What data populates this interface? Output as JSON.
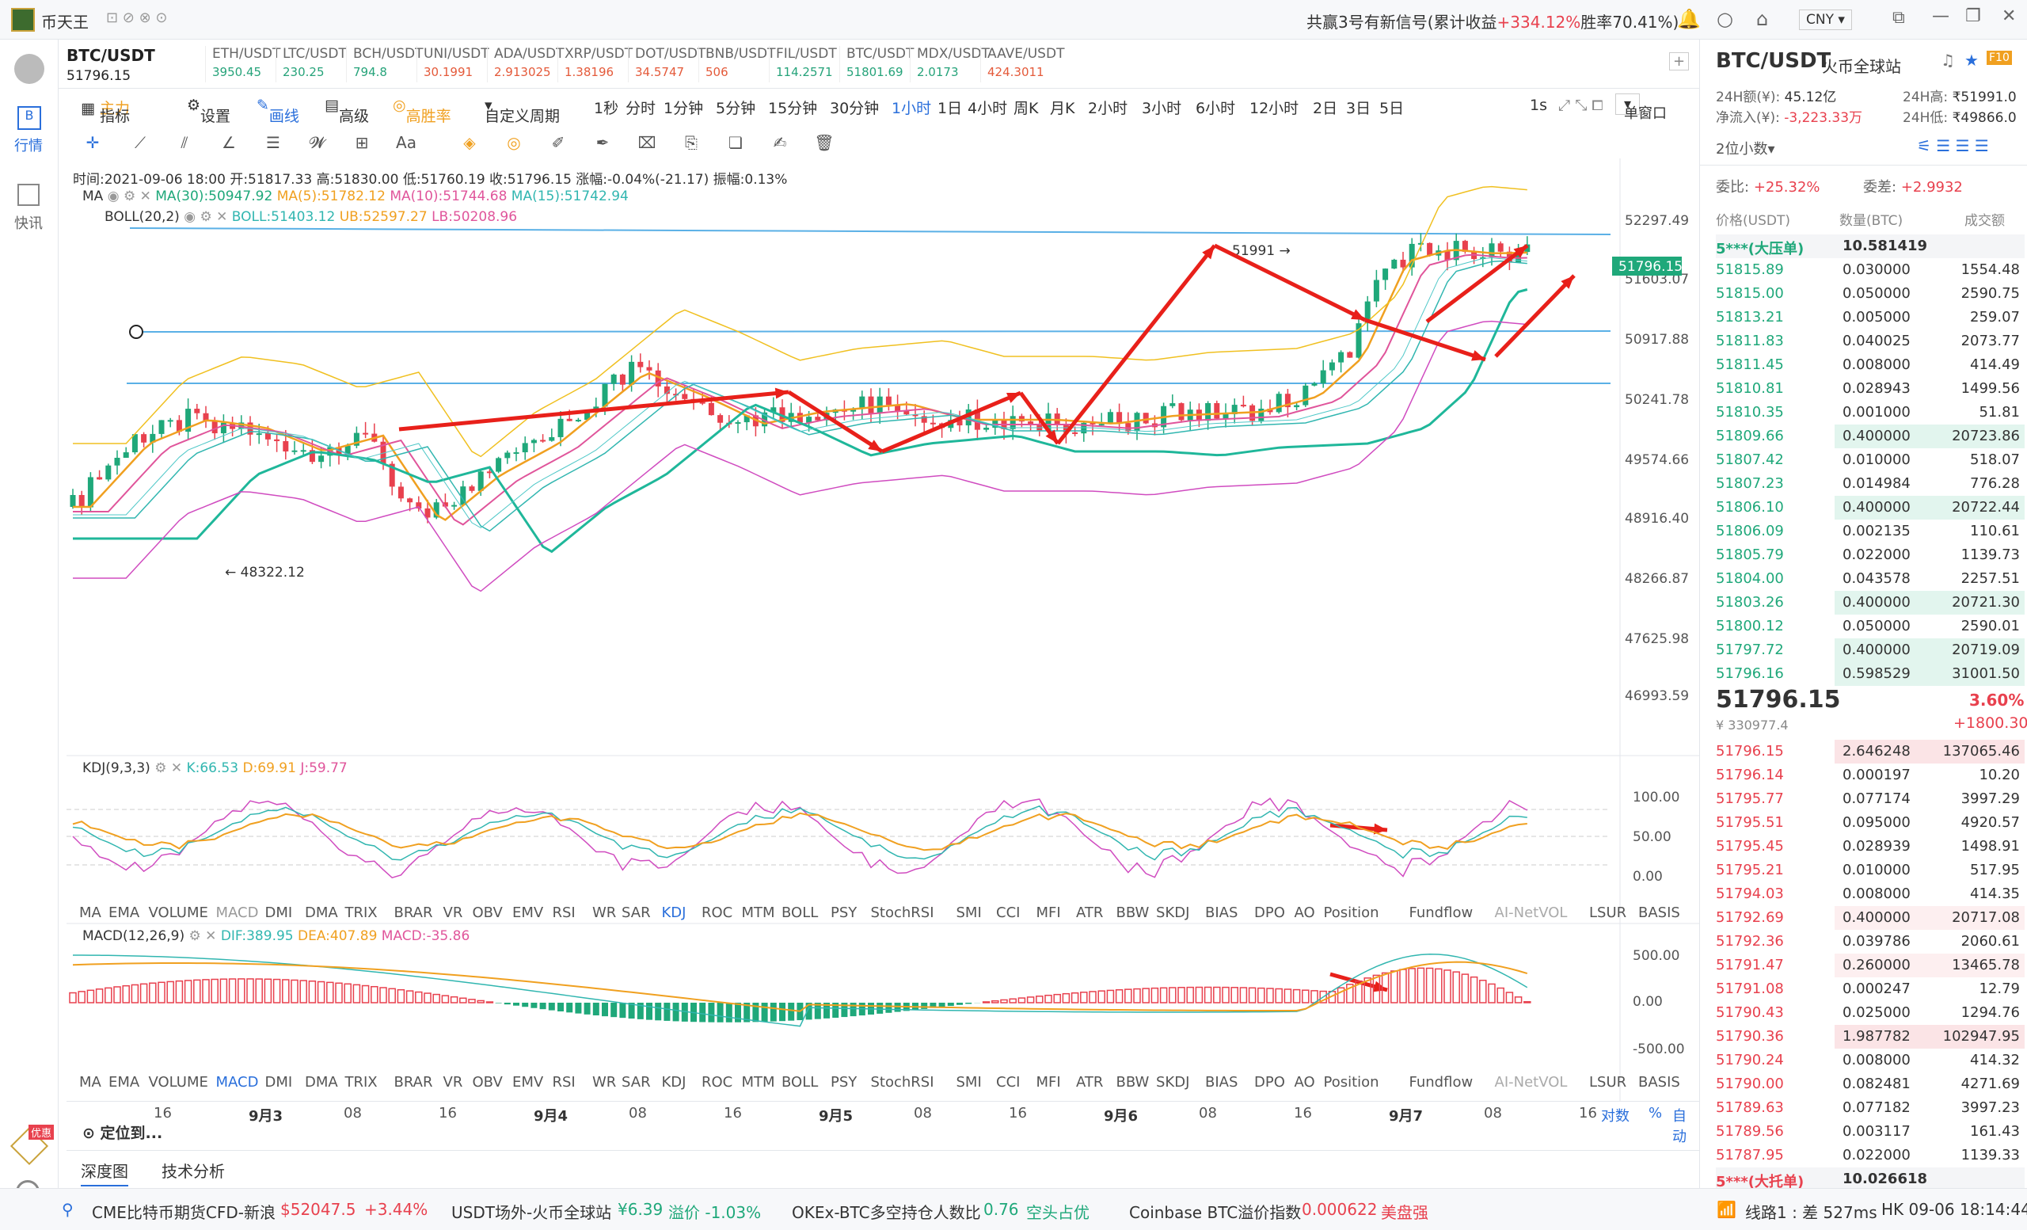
{
  "window": {
    "app_name": "币天王",
    "signal_text": "共赢3号有新信号(累计收益",
    "signal_gain": "+334.12%",
    "signal_win": "胜率70.41%)",
    "currency": "CNY"
  },
  "sidebar": {
    "items": [
      {
        "label": ""
      },
      {
        "label": "行情"
      },
      {
        "label": "快讯"
      }
    ],
    "promo": "优惠"
  },
  "tickers": [
    {
      "name": "BTC/USDT",
      "price": "51796.15",
      "main": true
    },
    {
      "name": "ETH/USDT",
      "price": "3950.45",
      "dir": "up"
    },
    {
      "name": "LTC/USDT",
      "price": "230.25",
      "dir": "up"
    },
    {
      "name": "BCH/USDT",
      "price": "794.8",
      "dir": "up"
    },
    {
      "name": "UNI/USDT",
      "price": "30.1991",
      "dir": "down"
    },
    {
      "name": "ADA/USDT",
      "price": "2.913025",
      "dir": "down"
    },
    {
      "name": "XRP/USDT",
      "price": "1.38196",
      "dir": "down"
    },
    {
      "name": "DOT/USDT",
      "price": "34.5747",
      "dir": "down"
    },
    {
      "name": "BNB/USDT",
      "price": "506",
      "dir": "down"
    },
    {
      "name": "FIL/USDT",
      "price": "114.2571",
      "dir": "up"
    },
    {
      "name": "BTC/USDT",
      "price": "51801.69",
      "dir": "up"
    },
    {
      "name": "MDX/USDT",
      "price": "2.0173",
      "dir": "up"
    },
    {
      "name": "AAVE/USDT",
      "price": "424.3011",
      "dir": "down"
    }
  ],
  "toolbar": {
    "indicator": "指标",
    "main": "主力",
    "settings": "设置",
    "draw": "画线",
    "advanced": "高级",
    "winrate": "高胜率",
    "custom": "自定义周期",
    "periods": [
      "1秒",
      "分时",
      "1分钟",
      "5分钟",
      "15分钟",
      "30分钟",
      "1小时",
      "1日",
      "4小时",
      "周K",
      "月K",
      "2小时",
      "3小时",
      "6小时",
      "12小时",
      "2日",
      "3日",
      "5日"
    ],
    "active_period": "1小时",
    "interval": "1s",
    "window_mode": "单窗口"
  },
  "info": {
    "ohlc": "时间:2021-09-06 18:00  开:51817.33  高:51830.00  低:51760.19  收:51796.15  涨幅:-0.04%(-21.17)  振幅:0.13%",
    "ma_label": "MA",
    "ma30": "MA(30):50947.92",
    "ma5": "MA(5):51782.12",
    "ma10": "MA(10):51744.68",
    "ma15": "MA(15):51742.94",
    "boll_label": "BOLL(20,2)",
    "boll": "BOLL:51403.12",
    "ub": "UB:52597.27",
    "lb": "LB:50208.96",
    "kdj_label": "KDJ(9,3,3)",
    "k": "K:66.53",
    "d": "D:69.91",
    "j": "J:59.77",
    "macd_label": "MACD(12,26,9)",
    "dif": "DIF:389.95",
    "dea": "DEA:407.89",
    "macd": "MACD:-35.86"
  },
  "price_axis": [
    "52297.49",
    "51603.07",
    "50917.88",
    "50241.78",
    "49574.66",
    "48916.40",
    "48266.87",
    "47625.98",
    "46993.59"
  ],
  "current_price_tag": "51796.15",
  "annot_high": "51991",
  "annot_low": "48322.12",
  "kdj_axis": [
    "100.00",
    "50.00",
    "0.00"
  ],
  "macd_axis": [
    "500.00",
    "0.00",
    "-500.00"
  ],
  "indicator_tabs": [
    "MA",
    "EMA",
    "VOLUME",
    "MACD",
    "DMI",
    "DMA",
    "TRIX",
    "BRAR",
    "VR",
    "OBV",
    "EMV",
    "RSI",
    "WR",
    "SAR",
    "KDJ",
    "ROC",
    "MTM",
    "BOLL",
    "PSY",
    "StochRSI",
    "SMI",
    "CCI",
    "MFI",
    "ATR",
    "BBW",
    "SKDJ",
    "BIAS",
    "DPO",
    "AO",
    "Position",
    "Fundflow",
    "AI-NetVOL",
    "LSUR",
    "BASIS"
  ],
  "time_axis": [
    "16",
    "9月3",
    "08",
    "16",
    "9月4",
    "08",
    "16",
    "9月5",
    "08",
    "16",
    "9月6",
    "08",
    "16",
    "9月7",
    "08",
    "16"
  ],
  "axis_opts": [
    "对数",
    "%",
    "自动"
  ],
  "locate": "定位到...",
  "bottom_tabs": [
    "深度图",
    "技术分析"
  ],
  "right": {
    "pair": "BTC/USDT",
    "exchange": "火币全球站",
    "vol_label": "24H额(¥):",
    "vol": "45.12亿",
    "high_label": "24H高:",
    "high": "₹51991.0",
    "inflow_label": "净流入(¥):",
    "inflow": "-3,223.33万",
    "low_label": "24H低:",
    "low": "₹49866.0",
    "decimals": "2位小数",
    "wb_label": "委比:",
    "wb": "+25.32%",
    "wc_label": "委差:",
    "wc": "+2.9932",
    "cols": [
      "价格(USDT)",
      "数量(BTC)",
      "成交额"
    ],
    "big_sell": {
      "price": "5***(大压单)",
      "qty": "10.581419"
    },
    "asks": [
      [
        "51815.89",
        "0.030000",
        "1554.48"
      ],
      [
        "51815.00",
        "0.050000",
        "2590.75"
      ],
      [
        "51813.21",
        "0.005000",
        "259.07"
      ],
      [
        "51811.83",
        "0.040025",
        "2073.77"
      ],
      [
        "51811.45",
        "0.008000",
        "414.49"
      ],
      [
        "51810.81",
        "0.028943",
        "1499.56"
      ],
      [
        "51810.35",
        "0.001000",
        "51.81"
      ],
      [
        "51809.66",
        "0.400000",
        "20723.86"
      ],
      [
        "51807.42",
        "0.010000",
        "518.07"
      ],
      [
        "51807.23",
        "0.014984",
        "776.28"
      ],
      [
        "51806.10",
        "0.400000",
        "20722.44"
      ],
      [
        "51806.09",
        "0.002135",
        "110.61"
      ],
      [
        "51805.79",
        "0.022000",
        "1139.73"
      ],
      [
        "51804.00",
        "0.043578",
        "2257.51"
      ],
      [
        "51803.26",
        "0.400000",
        "20721.30"
      ],
      [
        "51800.12",
        "0.050000",
        "2590.01"
      ],
      [
        "51797.72",
        "0.400000",
        "20719.09"
      ],
      [
        "51796.16",
        "0.598529",
        "31001.50"
      ]
    ],
    "last": "51796.15",
    "last_cny": "¥ 330977.4",
    "chg_pct": "3.60%",
    "chg": "+1800.30",
    "bids": [
      [
        "51796.15",
        "2.646248",
        "137065.46"
      ],
      [
        "51796.14",
        "0.000197",
        "10.20"
      ],
      [
        "51795.77",
        "0.077174",
        "3997.29"
      ],
      [
        "51795.51",
        "0.095000",
        "4920.57"
      ],
      [
        "51795.45",
        "0.028939",
        "1498.91"
      ],
      [
        "51795.21",
        "0.010000",
        "517.95"
      ],
      [
        "51794.03",
        "0.008000",
        "414.35"
      ],
      [
        "51792.69",
        "0.400000",
        "20717.08"
      ],
      [
        "51792.36",
        "0.039786",
        "2060.61"
      ],
      [
        "51791.47",
        "0.260000",
        "13465.78"
      ],
      [
        "51791.08",
        "0.000247",
        "12.79"
      ],
      [
        "51790.43",
        "0.025000",
        "1294.76"
      ],
      [
        "51790.36",
        "1.987782",
        "102947.95"
      ],
      [
        "51790.24",
        "0.008000",
        "414.32"
      ],
      [
        "51790.00",
        "0.082481",
        "4271.69"
      ],
      [
        "51789.63",
        "0.077182",
        "3997.23"
      ],
      [
        "51789.56",
        "0.003117",
        "161.43"
      ],
      [
        "51787.95",
        "0.022000",
        "1139.33"
      ]
    ],
    "big_buy": {
      "price": "5***(大托单)",
      "qty": "10.026618"
    }
  },
  "bottombar": {
    "cme": "CME比特币期货CFD-新浪",
    "cme_price": "$52047.5",
    "cme_chg": "+3.44%",
    "usdt": "USDT场外-火币全球站",
    "usdt_price": "¥6.39",
    "usdt_prem": "溢价 -1.03%",
    "okex": "OKEx-BTC多空持仓人数比",
    "okex_val": "0.76",
    "okex_state": "空头占优",
    "cb": "Coinbase BTC溢价指数",
    "cb_val": "0.000622",
    "cb_state": "美盘强",
    "line": "线路1 : 差 527ms",
    "clock": "HK 09-06 18:14:44"
  }
}
